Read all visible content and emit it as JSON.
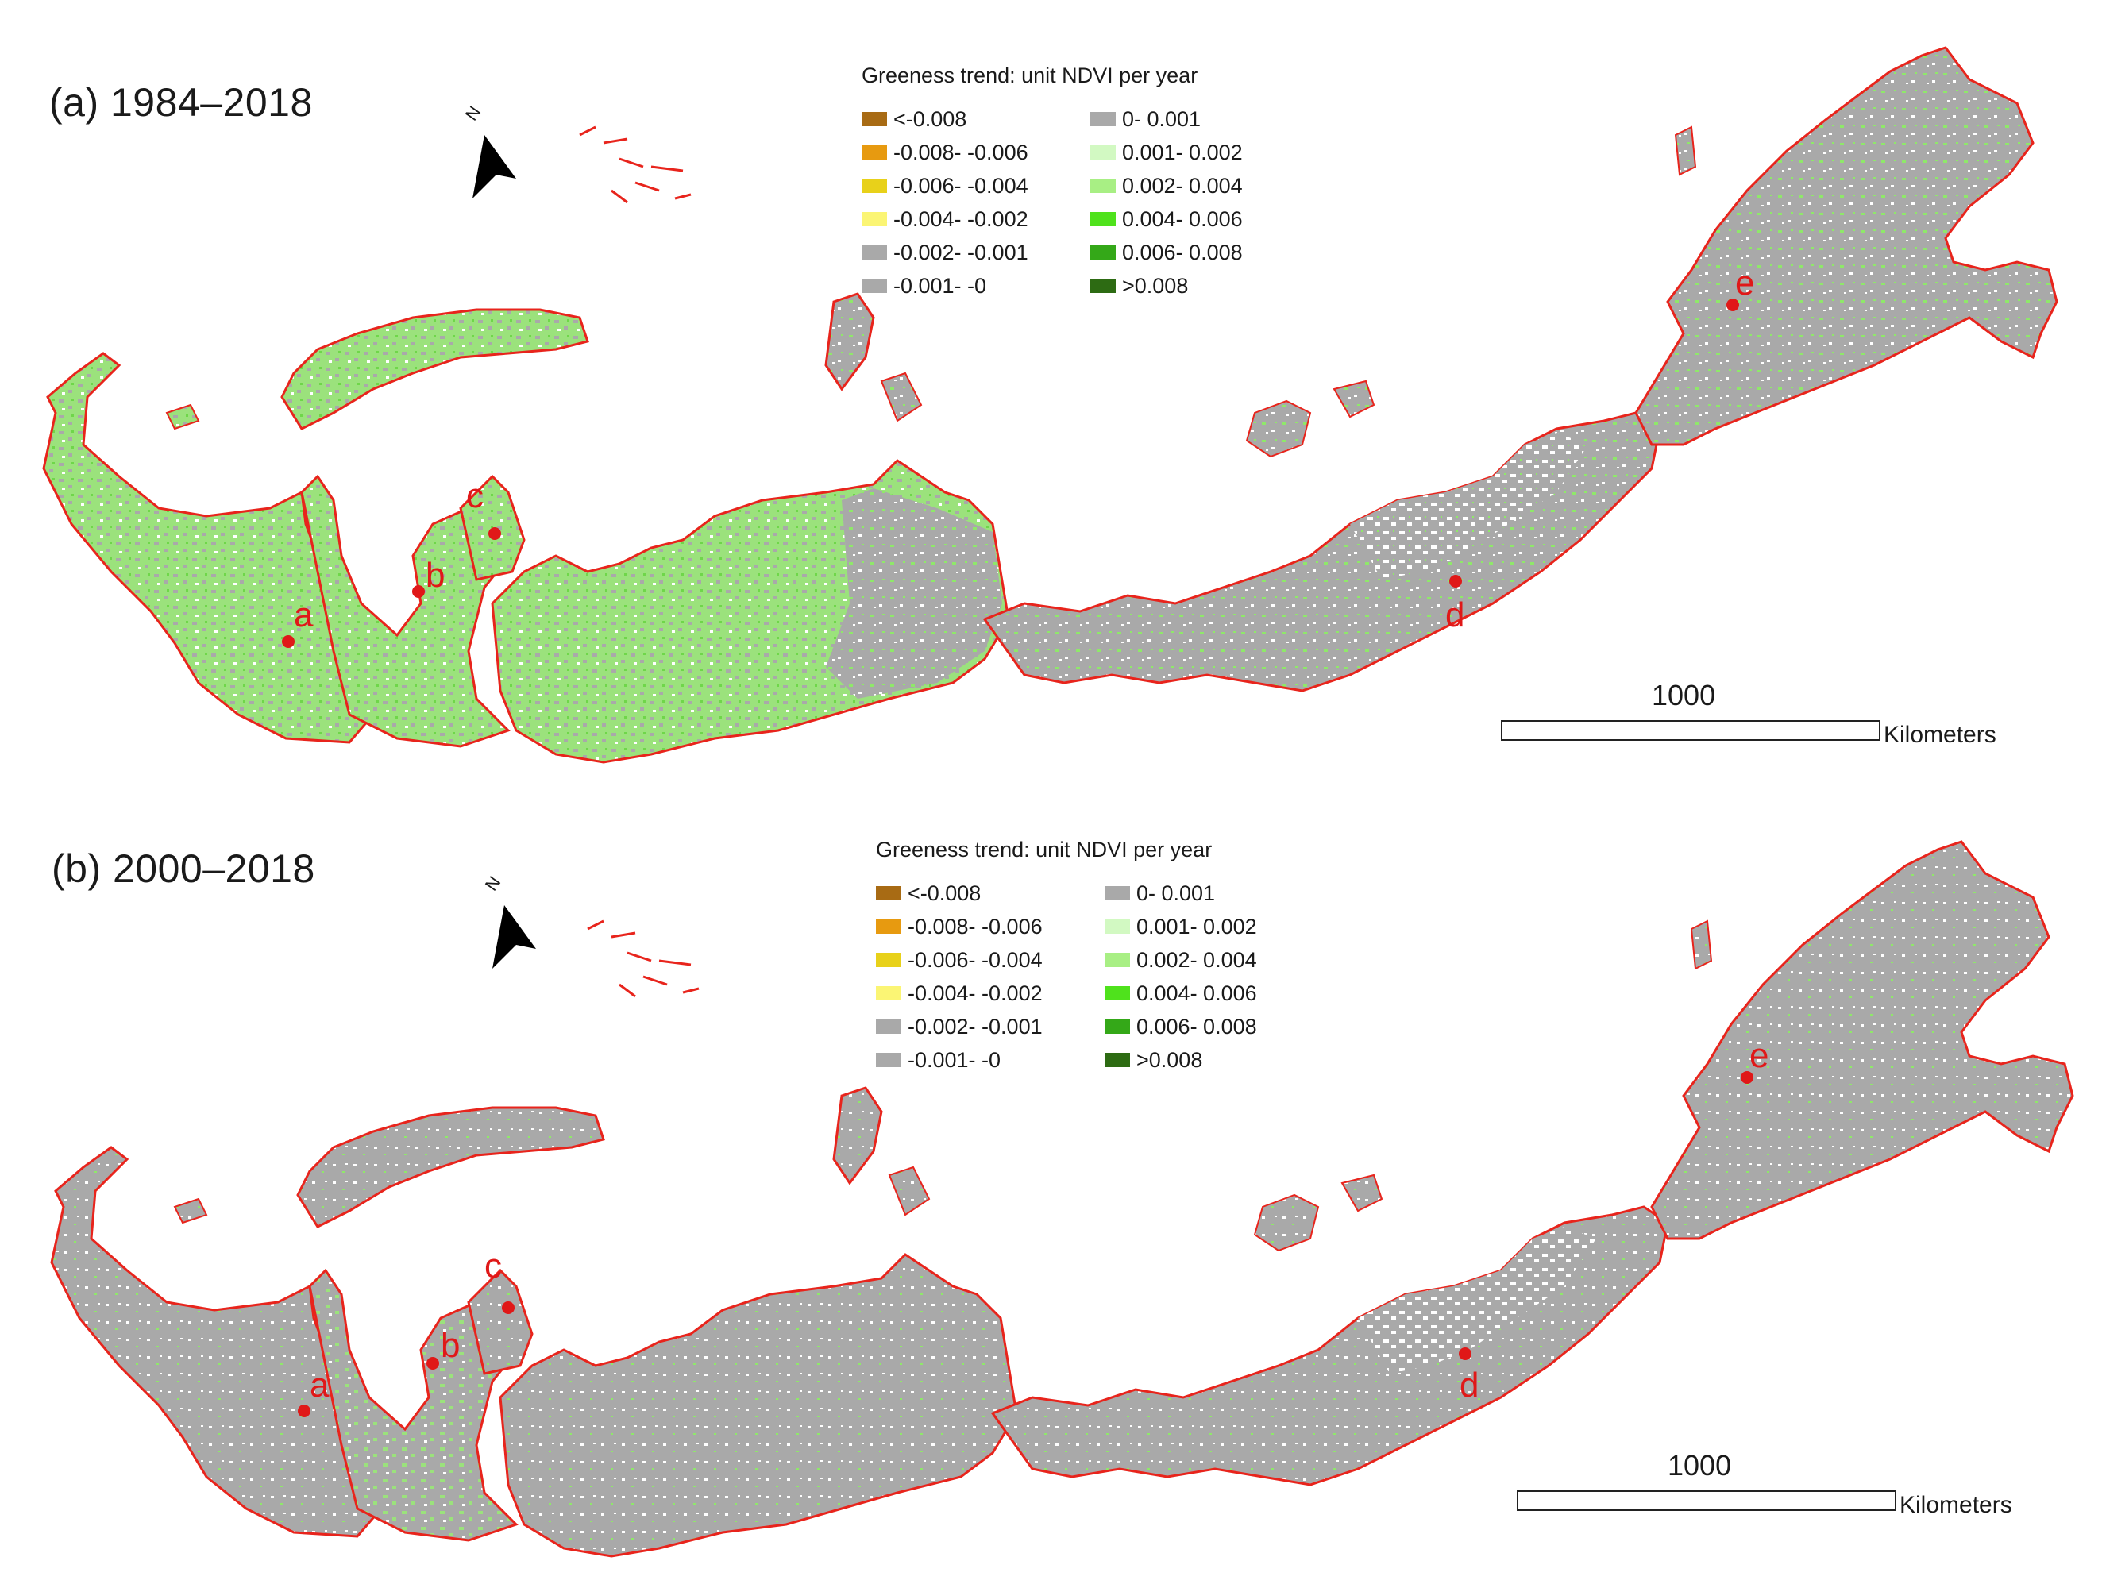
{
  "colors": {
    "land_gray": "#a9a9a9",
    "coast_red": "#e8241c",
    "greening_green": "#8fe86a",
    "site_marker_red": "#e01818"
  },
  "legend": {
    "title": "Greeness trend: unit NDVI per year",
    "left_column": [
      {
        "label": "<-0.008",
        "color": "#a86b14"
      },
      {
        "label": "-0.008- -0.006",
        "color": "#e79a10"
      },
      {
        "label": "-0.006- -0.004",
        "color": "#e8d11a"
      },
      {
        "label": "-0.004- -0.002",
        "color": "#fbf574"
      },
      {
        "label": "-0.002- -0.001",
        "color": "#a9a9a9"
      },
      {
        "label": "-0.001- -0",
        "color": "#a9a9a9"
      }
    ],
    "right_column": [
      {
        "label": "0- 0.001",
        "color": "#a9a9a9"
      },
      {
        "label": "0.001- 0.002",
        "color": "#d2f9c2"
      },
      {
        "label": "0.002- 0.004",
        "color": "#a8ef84"
      },
      {
        "label": "0.004- 0.006",
        "color": "#4fe21c"
      },
      {
        "label": "0.006- 0.008",
        "color": "#34a818"
      },
      {
        "label": ">0.008",
        "color": "#2d6b13"
      }
    ]
  },
  "panels": [
    {
      "title": "(a) 1984–2018",
      "north_label": "N",
      "scale_value": "1000",
      "scale_unit": "Kilometers",
      "sites": [
        "a",
        "b",
        "c",
        "d",
        "e"
      ]
    },
    {
      "title": "(b) 2000–2018",
      "north_label": "N",
      "scale_value": "1000",
      "scale_unit": "Kilometers",
      "sites": [
        "a",
        "b",
        "c",
        "d",
        "e"
      ]
    }
  ]
}
